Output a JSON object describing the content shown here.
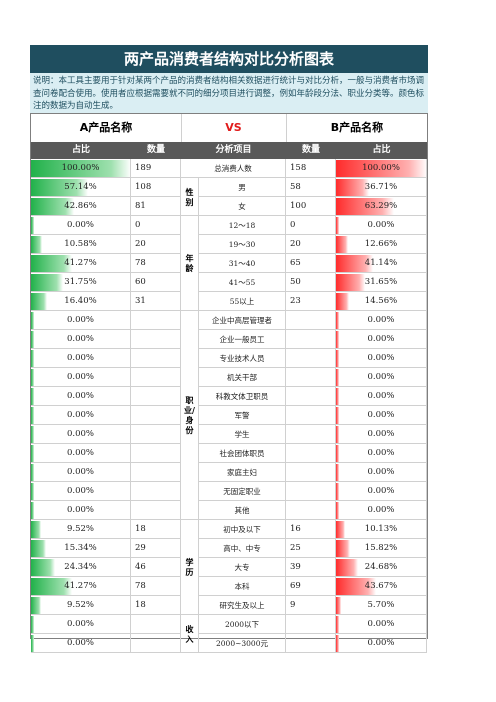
{
  "title": "两产品消费者结构对比分析图表",
  "description": "说明：本工具主要用于针对某两个产品的消费者结构相关数据进行统计与对比分析，一般与消费者市场调查问卷配合使用。使用者应根据需要就不同的细分项目进行调整，例如年龄段分法、职业分类等。颜色标注的数据为自动生成。",
  "header": {
    "a_name": "A产品名称",
    "vs": "VS",
    "b_name": "B产品名称"
  },
  "columns": {
    "a_pct": "占比",
    "a_count": "数量",
    "item": "分析项目",
    "b_count": "数量",
    "b_pct": "占比"
  },
  "categories": [
    {
      "label": "性别"
    },
    {
      "label": "年龄"
    },
    {
      "label": "职业/身份"
    },
    {
      "label": "学历"
    },
    {
      "label": "收入"
    }
  ],
  "rows": [
    {
      "a_pct": "100.00%",
      "a_count": "189",
      "item": "总消费人数",
      "b_count": "158",
      "b_pct": "100.00%",
      "a_val": 1.0,
      "b_val": 1.0
    },
    {
      "a_pct": "57.14%",
      "a_count": "108",
      "item": "男",
      "b_count": "58",
      "b_pct": "36.71%",
      "a_val": 0.5714,
      "b_val": 0.3671
    },
    {
      "a_pct": "42.86%",
      "a_count": "81",
      "item": "女",
      "b_count": "100",
      "b_pct": "63.29%",
      "a_val": 0.4286,
      "b_val": 0.6329
    },
    {
      "a_pct": "0.00%",
      "a_count": "0",
      "item": "12～18",
      "b_count": "0",
      "b_pct": "0.00%",
      "a_val": 0,
      "b_val": 0
    },
    {
      "a_pct": "10.58%",
      "a_count": "20",
      "item": "19～30",
      "b_count": "20",
      "b_pct": "12.66%",
      "a_val": 0.1058,
      "b_val": 0.1266
    },
    {
      "a_pct": "41.27%",
      "a_count": "78",
      "item": "31～40",
      "b_count": "65",
      "b_pct": "41.14%",
      "a_val": 0.4127,
      "b_val": 0.4114
    },
    {
      "a_pct": "31.75%",
      "a_count": "60",
      "item": "41～55",
      "b_count": "50",
      "b_pct": "31.65%",
      "a_val": 0.3175,
      "b_val": 0.3165
    },
    {
      "a_pct": "16.40%",
      "a_count": "31",
      "item": "55以上",
      "b_count": "23",
      "b_pct": "14.56%",
      "a_val": 0.164,
      "b_val": 0.1456
    },
    {
      "a_pct": "0.00%",
      "a_count": "",
      "item": "企业中高层管理者",
      "b_count": "",
      "b_pct": "0.00%",
      "a_val": 0,
      "b_val": 0
    },
    {
      "a_pct": "0.00%",
      "a_count": "",
      "item": "企业一般员工",
      "b_count": "",
      "b_pct": "0.00%",
      "a_val": 0,
      "b_val": 0
    },
    {
      "a_pct": "0.00%",
      "a_count": "",
      "item": "专业技术人员",
      "b_count": "",
      "b_pct": "0.00%",
      "a_val": 0,
      "b_val": 0
    },
    {
      "a_pct": "0.00%",
      "a_count": "",
      "item": "机关干部",
      "b_count": "",
      "b_pct": "0.00%",
      "a_val": 0,
      "b_val": 0
    },
    {
      "a_pct": "0.00%",
      "a_count": "",
      "item": "科教文体卫职员",
      "b_count": "",
      "b_pct": "0.00%",
      "a_val": 0,
      "b_val": 0
    },
    {
      "a_pct": "0.00%",
      "a_count": "",
      "item": "军警",
      "b_count": "",
      "b_pct": "0.00%",
      "a_val": 0,
      "b_val": 0
    },
    {
      "a_pct": "0.00%",
      "a_count": "",
      "item": "学生",
      "b_count": "",
      "b_pct": "0.00%",
      "a_val": 0,
      "b_val": 0
    },
    {
      "a_pct": "0.00%",
      "a_count": "",
      "item": "社会团体职员",
      "b_count": "",
      "b_pct": "0.00%",
      "a_val": 0,
      "b_val": 0
    },
    {
      "a_pct": "0.00%",
      "a_count": "",
      "item": "家庭主妇",
      "b_count": "",
      "b_pct": "0.00%",
      "a_val": 0,
      "b_val": 0
    },
    {
      "a_pct": "0.00%",
      "a_count": "",
      "item": "无固定职业",
      "b_count": "",
      "b_pct": "0.00%",
      "a_val": 0,
      "b_val": 0
    },
    {
      "a_pct": "0.00%",
      "a_count": "",
      "item": "其他",
      "b_count": "",
      "b_pct": "0.00%",
      "a_val": 0,
      "b_val": 0
    },
    {
      "a_pct": "9.52%",
      "a_count": "18",
      "item": "初中及以下",
      "b_count": "16",
      "b_pct": "10.13%",
      "a_val": 0.0952,
      "b_val": 0.1013
    },
    {
      "a_pct": "15.34%",
      "a_count": "29",
      "item": "高中、中专",
      "b_count": "25",
      "b_pct": "15.82%",
      "a_val": 0.1534,
      "b_val": 0.1582
    },
    {
      "a_pct": "24.34%",
      "a_count": "46",
      "item": "大专",
      "b_count": "39",
      "b_pct": "24.68%",
      "a_val": 0.2434,
      "b_val": 0.2468
    },
    {
      "a_pct": "41.27%",
      "a_count": "78",
      "item": "本科",
      "b_count": "69",
      "b_pct": "43.67%",
      "a_val": 0.4127,
      "b_val": 0.4367
    },
    {
      "a_pct": "9.52%",
      "a_count": "18",
      "item": "研究生及以上",
      "b_count": "9",
      "b_pct": "5.70%",
      "a_val": 0.0952,
      "b_val": 0.057
    },
    {
      "a_pct": "0.00%",
      "a_count": "",
      "item": "2000以下",
      "b_count": "",
      "b_pct": "0.00%",
      "a_val": 0,
      "b_val": 0
    },
    {
      "a_pct": "0.00%",
      "a_count": "",
      "item": "2000~3000元",
      "b_count": "",
      "b_pct": "0.00%",
      "a_val": 0,
      "b_val": 0
    }
  ]
}
